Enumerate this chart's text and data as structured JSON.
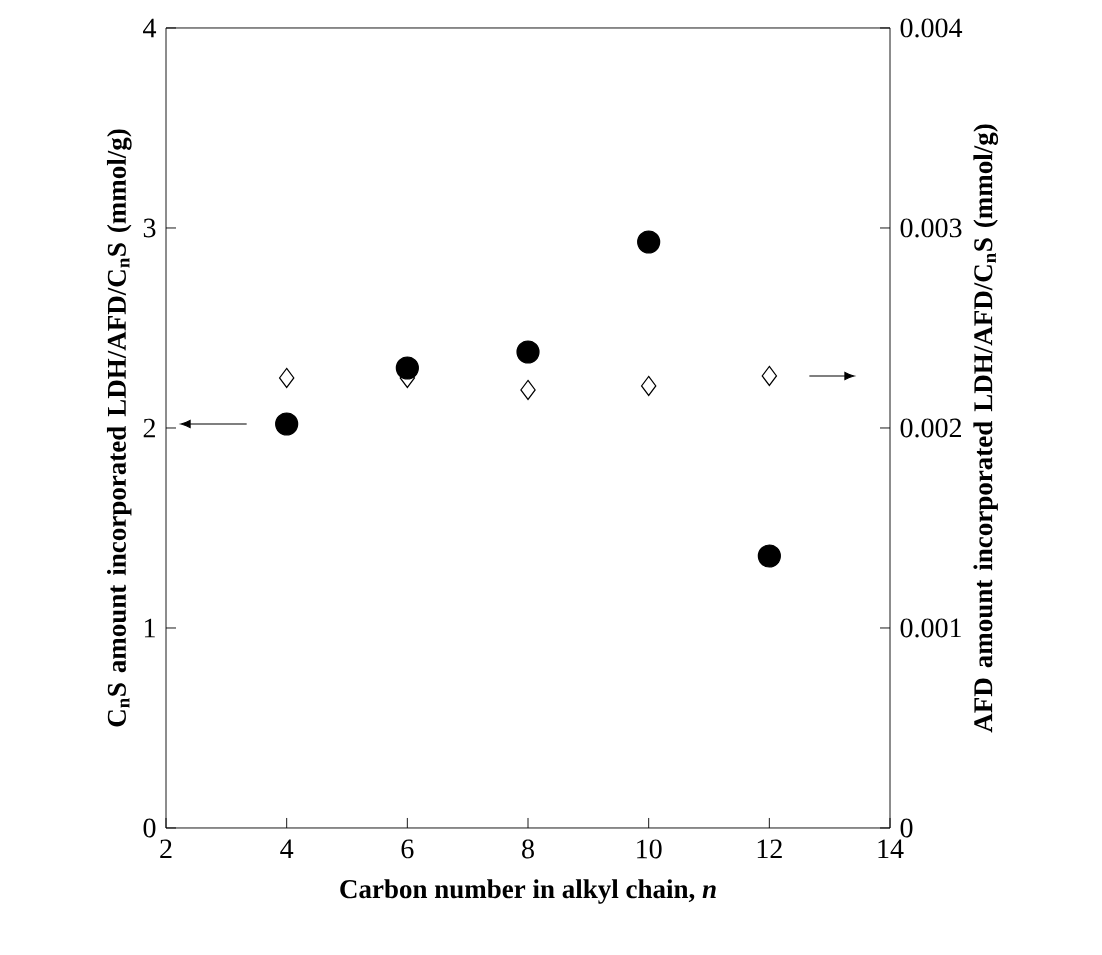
{
  "chart_data": {
    "type": "scatter",
    "xlabel": "Carbon number in alkyl chain, *n*",
    "ylabel": "C$_{n}$S amount incorporated LDH/AFD/C$_{n}$S (mmol/g)",
    "y2label": "AFD amount incorporated LDH/AFD/C$_{n}$S (mmol/g)",
    "x": [
      4,
      6,
      8,
      10,
      12
    ],
    "series": [
      {
        "color": "#000000",
        "marker": "circle",
        "values": [
          2.02,
          2.3,
          2.38,
          2.93,
          1.36
        ]
      },
      {
        "color": "#000000",
        "marker": "diamond",
        "axis": "y2",
        "values": [
          0.00225,
          0.00225,
          0.00219,
          0.00221,
          0.00226
        ]
      }
    ],
    "xlim": [
      2,
      14
    ],
    "xticks": [
      2,
      4,
      6,
      8,
      10,
      12,
      14
    ],
    "ylim": [
      0,
      4
    ],
    "yticks": [
      0,
      1,
      2,
      3,
      4
    ],
    "y2lim": [
      0,
      0.004
    ],
    "y2ticks": [
      0,
      0.001,
      0.002,
      0.003,
      0.004
    ],
    "grid": false
  }
}
